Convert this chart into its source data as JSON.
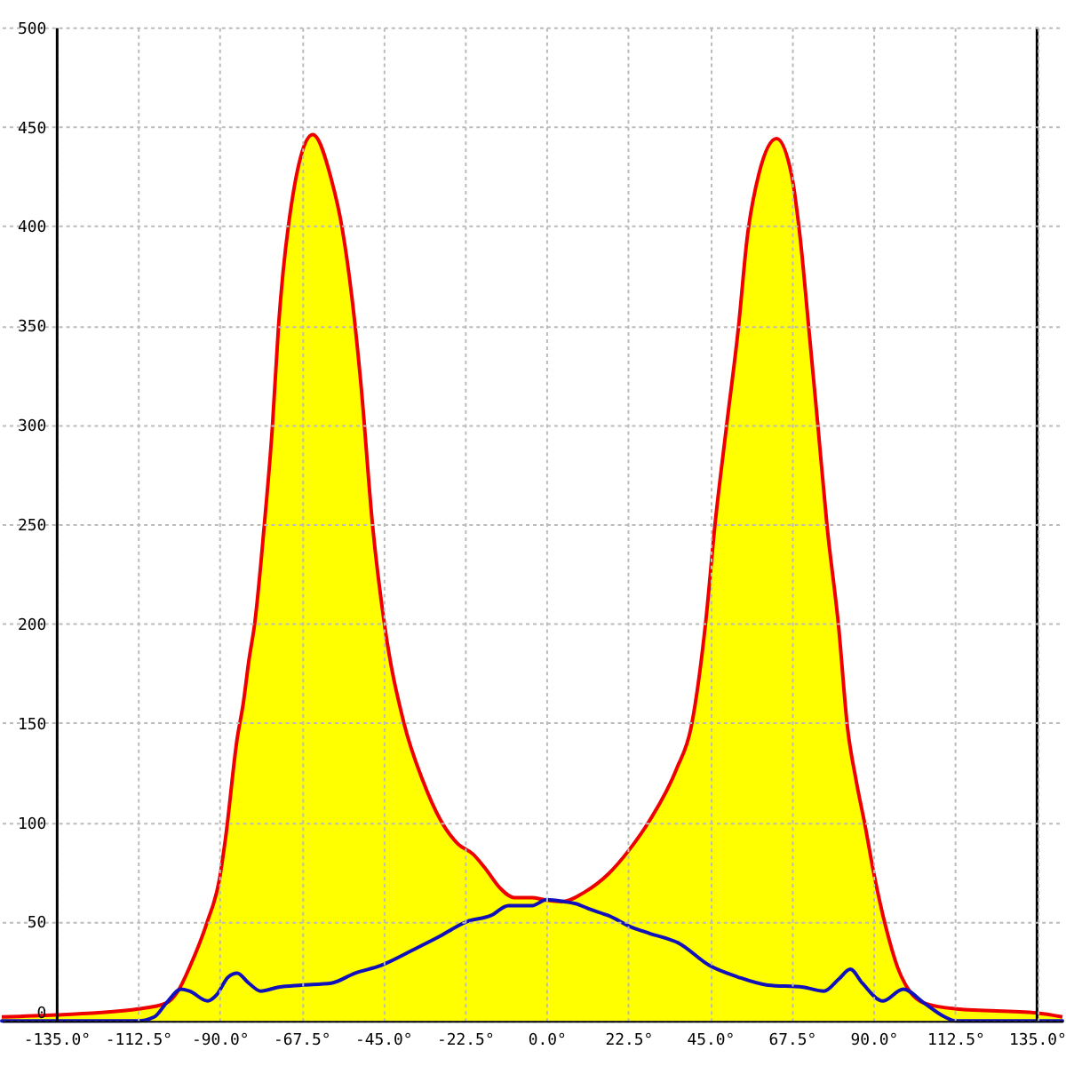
{
  "chart_data": {
    "type": "area",
    "series": [
      {
        "color": "#ffff00",
        "x": [
          -150,
          -135,
          -112.5,
          -104.7,
          -101.5,
          -98.3,
          -93.4,
          -90.1,
          -88.4,
          -85.2,
          -83.5,
          -82,
          -80.3,
          -77.9,
          -75.5,
          -73.8,
          -71.1,
          -64.4,
          -59.2,
          -56.3,
          -53.6,
          -51.1,
          -47.9,
          -44.6,
          -39.3,
          -34.1,
          -29.2,
          -24.4,
          -20.3,
          -17,
          -12.9,
          -8.9,
          -4,
          -0.8,
          4.1,
          10.6,
          17,
          22.7,
          28.4,
          35.8,
          39.8,
          43.8,
          46.3,
          49.5,
          52.8,
          55.2,
          58.4,
          63.3,
          67.4,
          69.8,
          72.3,
          74.7,
          77.2,
          80.4,
          82.8,
          85.2,
          87.7,
          90.1,
          93.4,
          96.6,
          99.9,
          103.9,
          112.9,
          134.8,
          142
        ],
        "values": [
          2,
          3,
          6,
          9,
          15,
          27,
          50,
          71,
          92,
          142,
          160,
          181,
          201,
          246,
          299,
          350,
          400,
          446,
          423,
          399,
          364,
          320,
          249,
          199,
          150,
          121,
          101,
          89,
          84,
          77,
          67,
          62,
          62,
          61,
          60,
          65,
          74,
          86,
          101,
          127,
          148,
          201,
          249,
          299,
          349,
          394,
          426,
          444,
          426,
          394,
          346,
          299,
          249,
          198,
          148,
          121,
          98,
          74,
          47,
          27,
          15,
          9,
          6,
          4,
          2
        ]
      },
      {
        "type": "line",
        "color": "#1111bb",
        "x": [
          -150,
          -112.5,
          -108,
          -104.7,
          -100.6,
          -98.3,
          -93.3,
          -90.9,
          -87.7,
          -85.2,
          -82,
          -78.7,
          -73.8,
          -67.4,
          -59.3,
          -52.8,
          -45.5,
          -36.5,
          -30,
          -21.9,
          -15.4,
          -10.5,
          -4,
          0,
          4.9,
          8,
          12.2,
          17,
          23.6,
          28.4,
          36.5,
          44.7,
          52.8,
          60.9,
          70.6,
          76.3,
          80.4,
          83.6,
          86.9,
          92.5,
          98.2,
          103.9,
          109.6,
          112.5,
          142
        ],
        "values": [
          0,
          0,
          2,
          9,
          16,
          15,
          10,
          13,
          22,
          24,
          19,
          15,
          17,
          18,
          19,
          24,
          28,
          36,
          42,
          50,
          53,
          58,
          58,
          61,
          60,
          59,
          56,
          53,
          47,
          44,
          39,
          28,
          22,
          18,
          17,
          15,
          21,
          26,
          19,
          10,
          16,
          9,
          2,
          0,
          0
        ]
      }
    ],
    "xlim": [
      -150,
      142
    ],
    "xticks": [
      {
        "value": -135,
        "label": "-135.0°"
      },
      {
        "value": -112.5,
        "label": "-112.5°"
      },
      {
        "value": -90,
        "label": "-90.0°"
      },
      {
        "value": -67.5,
        "label": "-67.5°"
      },
      {
        "value": -45,
        "label": "-45.0°"
      },
      {
        "value": -22.5,
        "label": "-22.5°"
      },
      {
        "value": 0,
        "label": "0.0°"
      },
      {
        "value": 22.5,
        "label": "22.5°"
      },
      {
        "value": 45,
        "label": "45.0°"
      },
      {
        "value": 67.5,
        "label": "67.5°"
      },
      {
        "value": 90,
        "label": "90.0°"
      },
      {
        "value": 112.5,
        "label": "112.5°"
      },
      {
        "value": 135,
        "label": "135.0°"
      }
    ],
    "ylim": [
      0,
      500
    ],
    "yticks": [
      0,
      50,
      100,
      150,
      200,
      250,
      300,
      350,
      400,
      450,
      500
    ],
    "grid": true
  }
}
